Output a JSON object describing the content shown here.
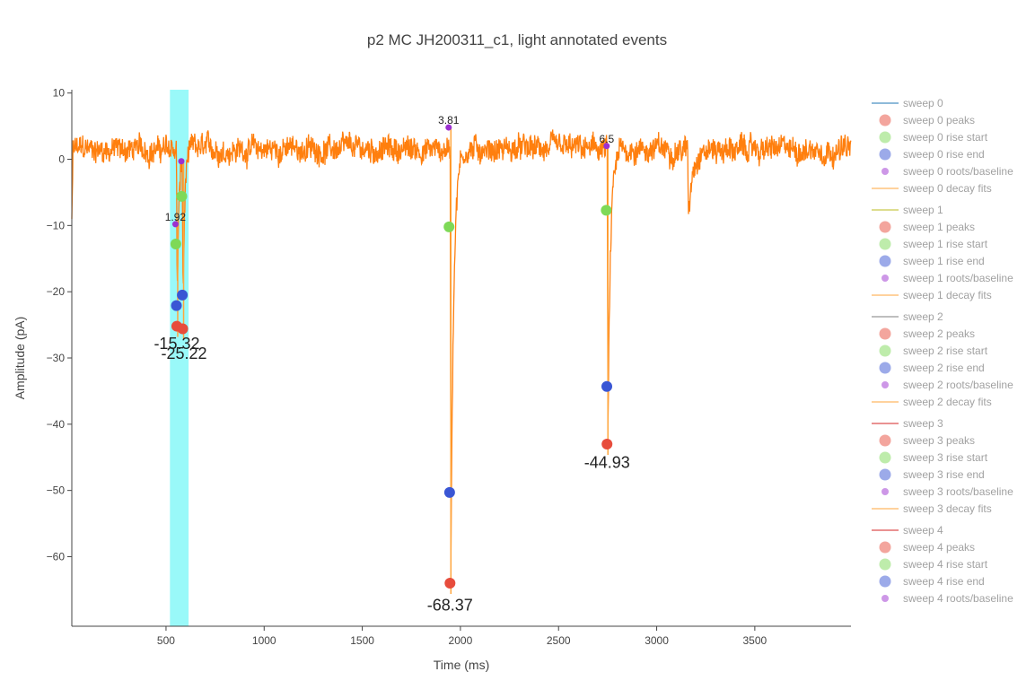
{
  "chart_data": {
    "type": "line",
    "title": "p2 MC JH200311_c1, light annotated events",
    "xlabel": "Time (ms)",
    "ylabel": "Amplitude (pA)",
    "xlim": [
      20,
      3990
    ],
    "ylim": [
      -70.5,
      10.5
    ],
    "xticks": [
      500,
      1000,
      1500,
      2000,
      2500,
      3000,
      3500
    ],
    "yticks": [
      10,
      0,
      -10,
      -20,
      -30,
      -40,
      -50,
      -60
    ],
    "ytick_labels": [
      "10",
      "0",
      "−10",
      "−20",
      "−30",
      "−40",
      "−50",
      "−60"
    ],
    "grid": false,
    "legend_position": "right",
    "stimulus_window": {
      "start": 520,
      "end": 615,
      "color": "#00f0f0"
    },
    "trace": {
      "color": "#ff7f0e",
      "baseline": 1.5,
      "noise": 1.6,
      "events": [
        {
          "t": 555,
          "amp": -27,
          "width": 10
        },
        {
          "t": 585,
          "amp": -27,
          "width": 9
        },
        {
          "t": 1950,
          "amp": -70,
          "width": 14
        },
        {
          "t": 2750,
          "amp": -48,
          "width": 14
        },
        {
          "t": 3160,
          "amp": -12,
          "width": 18
        }
      ]
    },
    "peaks": [
      {
        "x": 555,
        "y": -25.2
      },
      {
        "x": 585,
        "y": -25.6
      },
      {
        "x": 1947,
        "y": -64.0
      },
      {
        "x": 2747,
        "y": -43.0
      }
    ],
    "rise_start": [
      {
        "x": 550,
        "y": -12.8
      },
      {
        "x": 580,
        "y": -5.6
      },
      {
        "x": 1942,
        "y": -10.2
      },
      {
        "x": 2743,
        "y": -7.7
      }
    ],
    "rise_end": [
      {
        "x": 553,
        "y": -22.1
      },
      {
        "x": 583,
        "y": -20.5
      },
      {
        "x": 1945,
        "y": -50.3
      },
      {
        "x": 2746,
        "y": -34.3
      }
    ],
    "roots_baseline": [
      {
        "x": 548,
        "y": -9.8
      },
      {
        "x": 578,
        "y": -0.3
      },
      {
        "x": 1940,
        "y": 4.8
      },
      {
        "x": 2745,
        "y": 2.0
      }
    ],
    "annotations": [
      {
        "x": 555,
        "y": -27.0,
        "text": "-15.32",
        "style": "large"
      },
      {
        "x": 592,
        "y": -28.5,
        "text": "-25.22",
        "style": "large"
      },
      {
        "x": 1947,
        "y": -66.5,
        "text": "-68.37",
        "style": "large"
      },
      {
        "x": 2747,
        "y": -45.0,
        "text": "-44.93",
        "style": "large"
      },
      {
        "x": 548,
        "y": -9.8,
        "text": "1.92",
        "style": "small"
      },
      {
        "x": 1940,
        "y": 4.8,
        "text": "3.81",
        "style": "small"
      },
      {
        "x": 2745,
        "y": 2.0,
        "text": "6.5",
        "style": "small"
      }
    ],
    "legend": [
      {
        "label": "sweep 0",
        "kind": "line",
        "color": "#1f77b4"
      },
      {
        "label": "sweep 0 peaks",
        "kind": "marker",
        "color": "#e74c3c"
      },
      {
        "label": "sweep 0 rise start",
        "kind": "marker",
        "color": "#7ed957"
      },
      {
        "label": "sweep 0 rise end",
        "kind": "marker",
        "color": "#3a56d4"
      },
      {
        "label": "sweep 0 roots/baseline",
        "kind": "marker-small",
        "color": "#9b30d0"
      },
      {
        "label": "sweep 0 decay fits",
        "kind": "line",
        "color": "#ffa63d"
      },
      {
        "label": "sweep 1",
        "kind": "line",
        "color": "#bcbd22"
      },
      {
        "label": "sweep 1 peaks",
        "kind": "marker",
        "color": "#e74c3c"
      },
      {
        "label": "sweep 1 rise start",
        "kind": "marker",
        "color": "#7ed957"
      },
      {
        "label": "sweep 1 rise end",
        "kind": "marker",
        "color": "#3a56d4"
      },
      {
        "label": "sweep 1 roots/baseline",
        "kind": "marker-small",
        "color": "#9b30d0"
      },
      {
        "label": "sweep 1 decay fits",
        "kind": "line",
        "color": "#ffa63d"
      },
      {
        "label": "sweep 2",
        "kind": "line",
        "color": "#7f7f7f"
      },
      {
        "label": "sweep 2 peaks",
        "kind": "marker",
        "color": "#e74c3c"
      },
      {
        "label": "sweep 2 rise start",
        "kind": "marker",
        "color": "#7ed957"
      },
      {
        "label": "sweep 2 rise end",
        "kind": "marker",
        "color": "#3a56d4"
      },
      {
        "label": "sweep 2 roots/baseline",
        "kind": "marker-small",
        "color": "#9b30d0"
      },
      {
        "label": "sweep 2 decay fits",
        "kind": "line",
        "color": "#ffa63d"
      },
      {
        "label": "sweep 3",
        "kind": "line",
        "color": "#d62728"
      },
      {
        "label": "sweep 3 peaks",
        "kind": "marker",
        "color": "#e74c3c"
      },
      {
        "label": "sweep 3 rise start",
        "kind": "marker",
        "color": "#7ed957"
      },
      {
        "label": "sweep 3 rise end",
        "kind": "marker",
        "color": "#3a56d4"
      },
      {
        "label": "sweep 3 roots/baseline",
        "kind": "marker-small",
        "color": "#9b30d0"
      },
      {
        "label": "sweep 3 decay fits",
        "kind": "line",
        "color": "#ffa63d"
      },
      {
        "label": "sweep 4",
        "kind": "line",
        "color": "#d62728"
      },
      {
        "label": "sweep 4 peaks",
        "kind": "marker",
        "color": "#e74c3c"
      },
      {
        "label": "sweep 4 rise start",
        "kind": "marker",
        "color": "#7ed957"
      },
      {
        "label": "sweep 4 rise end",
        "kind": "marker",
        "color": "#3a56d4"
      },
      {
        "label": "sweep 4 roots/baseline",
        "kind": "marker-small",
        "color": "#9b30d0"
      }
    ],
    "colors": {
      "peaks": "#e74c3c",
      "rise_start": "#7ed957",
      "rise_end": "#3a56d4",
      "roots": "#9b30d0",
      "decay_fit": "#ffa63d"
    }
  }
}
